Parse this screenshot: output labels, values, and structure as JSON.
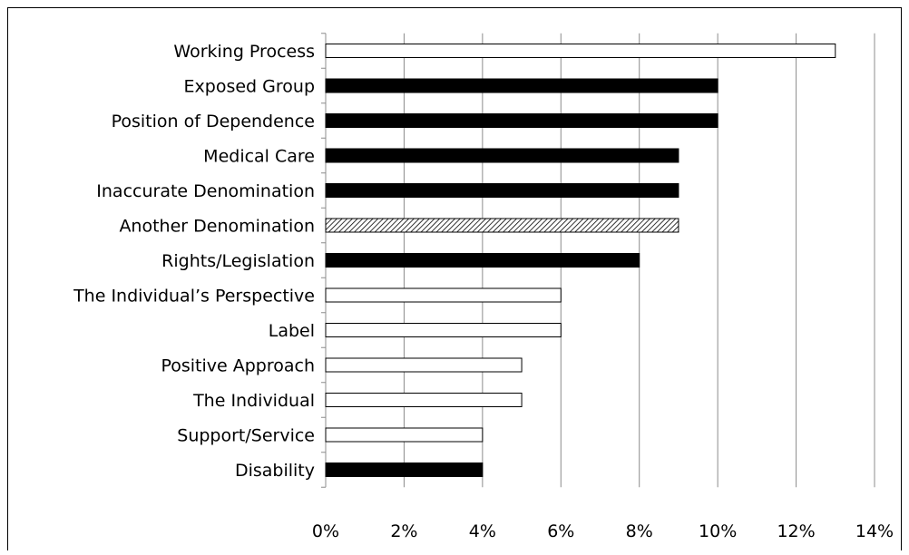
{
  "chart_data": {
    "type": "bar",
    "orientation": "horizontal",
    "categories": [
      "Working Process",
      "Exposed Group",
      "Position of Dependence",
      "Medical Care",
      "Inaccurate Denomination",
      "Another Denomination",
      "Rights/Legislation",
      "The Individual’s Perspective",
      "Label",
      "Positive Approach",
      "The Individual",
      "Support/Service",
      "Disability"
    ],
    "values": [
      13,
      10,
      10,
      9,
      9,
      9,
      8,
      6,
      6,
      5,
      5,
      4,
      4
    ],
    "value_unit": "percent",
    "bar_fill_styles": [
      "white",
      "black",
      "black",
      "black",
      "black",
      "hatched",
      "black",
      "white",
      "white",
      "white",
      "white",
      "white",
      "black"
    ],
    "xlim": [
      0,
      14
    ],
    "x_ticks": [
      0,
      2,
      4,
      6,
      8,
      10,
      12,
      14
    ],
    "x_tick_labels": [
      "0%",
      "2%",
      "4%",
      "6%",
      "8%",
      "10%",
      "12%",
      "14%"
    ],
    "gridlines": "vertical",
    "legend": "none",
    "title": "",
    "xlabel": "",
    "ylabel": "",
    "colors": {
      "solid": "#000000",
      "outline": "#000000",
      "empty": "#ffffff",
      "grid": "#8c8c8c",
      "hatch": "#000000"
    }
  }
}
